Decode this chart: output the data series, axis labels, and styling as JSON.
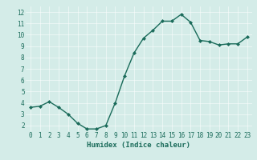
{
  "x": [
    0,
    1,
    2,
    3,
    4,
    5,
    6,
    7,
    8,
    9,
    10,
    11,
    12,
    13,
    14,
    15,
    16,
    17,
    18,
    19,
    20,
    21,
    22,
    23
  ],
  "y": [
    3.6,
    3.7,
    4.1,
    3.6,
    3.0,
    2.2,
    1.7,
    1.7,
    2.0,
    4.0,
    6.4,
    8.4,
    9.7,
    10.4,
    11.2,
    11.2,
    11.8,
    11.1,
    9.5,
    9.4,
    9.1,
    9.2,
    9.2,
    9.8
  ],
  "line_color": "#1a6b5a",
  "marker": "D",
  "marker_size": 2.0,
  "xlabel": "Humidex (Indice chaleur)",
  "ylim": [
    1.5,
    12.5
  ],
  "xlim": [
    -0.5,
    23.5
  ],
  "yticks": [
    2,
    3,
    4,
    5,
    6,
    7,
    8,
    9,
    10,
    11,
    12
  ],
  "xticks": [
    0,
    1,
    2,
    3,
    4,
    5,
    6,
    7,
    8,
    9,
    10,
    11,
    12,
    13,
    14,
    15,
    16,
    17,
    18,
    19,
    20,
    21,
    22,
    23
  ],
  "grid_color": "#c8e6e0",
  "bg_color": "#d4ece8",
  "axis_bg": "#d4ece8",
  "tick_color": "#1a6b5a",
  "label_color": "#1a6b5a",
  "xlabel_fontsize": 6.5,
  "tick_fontsize": 5.5,
  "linewidth": 1.0
}
